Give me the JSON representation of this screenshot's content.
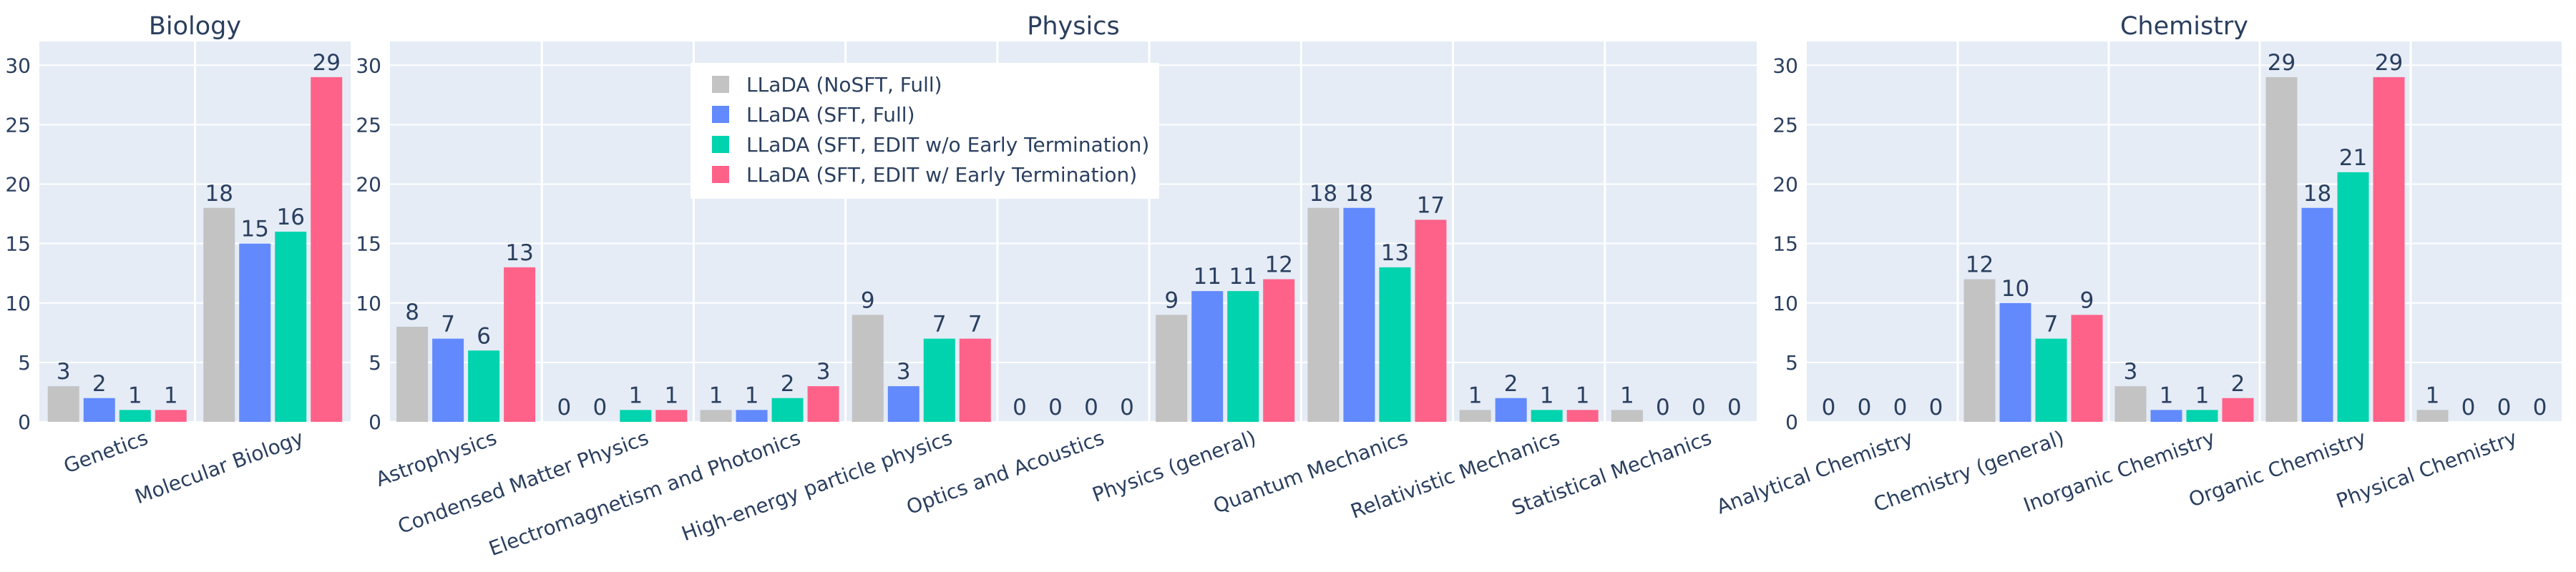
{
  "colors": {
    "plot_bg": "#e5ecf6",
    "grid": "#ffffff",
    "text": "#2a3f5f",
    "legend_bg": "#ffffff"
  },
  "chart_data": {
    "type": "bar",
    "series": [
      {
        "name": "LLaDA (NoSFT, Full)",
        "color": "#c3c3c3"
      },
      {
        "name": "LLaDA (SFT, Full)",
        "color": "#628afd"
      },
      {
        "name": "LLaDA (SFT, EDIT w/o Early Termination)",
        "color": "#00d3ad"
      },
      {
        "name": "LLaDA (SFT, EDIT w/ Early Termination)",
        "color": "#ff6289"
      }
    ],
    "legend_position": "top (inside Physics panel)",
    "grid": true,
    "panels": [
      {
        "title": "Biology",
        "ylim": [
          0,
          32
        ],
        "yticks": [
          0,
          5,
          10,
          15,
          20,
          25,
          30
        ],
        "categories": [
          "Genetics",
          "Molecular Biology"
        ],
        "values": [
          [
            3,
            2,
            1,
            1
          ],
          [
            18,
            15,
            16,
            29
          ]
        ]
      },
      {
        "title": "Physics",
        "ylim": [
          0,
          32
        ],
        "yticks": [
          0,
          5,
          10,
          15,
          20,
          25,
          30
        ],
        "categories": [
          "Astrophysics",
          "Condensed Matter Physics",
          "Electromagnetism and Photonics",
          "High-energy particle physics",
          "Optics and Acoustics",
          "Physics (general)",
          "Quantum Mechanics",
          "Relativistic Mechanics",
          "Statistical Mechanics"
        ],
        "values": [
          [
            8,
            7,
            6,
            13
          ],
          [
            0,
            0,
            1,
            1
          ],
          [
            1,
            1,
            2,
            3
          ],
          [
            9,
            3,
            7,
            7
          ],
          [
            0,
            0,
            0,
            0
          ],
          [
            9,
            11,
            11,
            12
          ],
          [
            18,
            18,
            13,
            17
          ],
          [
            1,
            2,
            1,
            1
          ],
          [
            1,
            0,
            0,
            0
          ]
        ]
      },
      {
        "title": "Chemistry",
        "ylim": [
          0,
          32
        ],
        "yticks": [
          0,
          5,
          10,
          15,
          20,
          25,
          30
        ],
        "categories": [
          "Analytical Chemistry",
          "Chemistry (general)",
          "Inorganic Chemistry",
          "Organic Chemistry",
          "Physical Chemistry"
        ],
        "values": [
          [
            0,
            0,
            0,
            0
          ],
          [
            12,
            10,
            7,
            9
          ],
          [
            3,
            1,
            1,
            2
          ],
          [
            29,
            18,
            21,
            29
          ],
          [
            1,
            0,
            0,
            0
          ]
        ]
      }
    ]
  }
}
